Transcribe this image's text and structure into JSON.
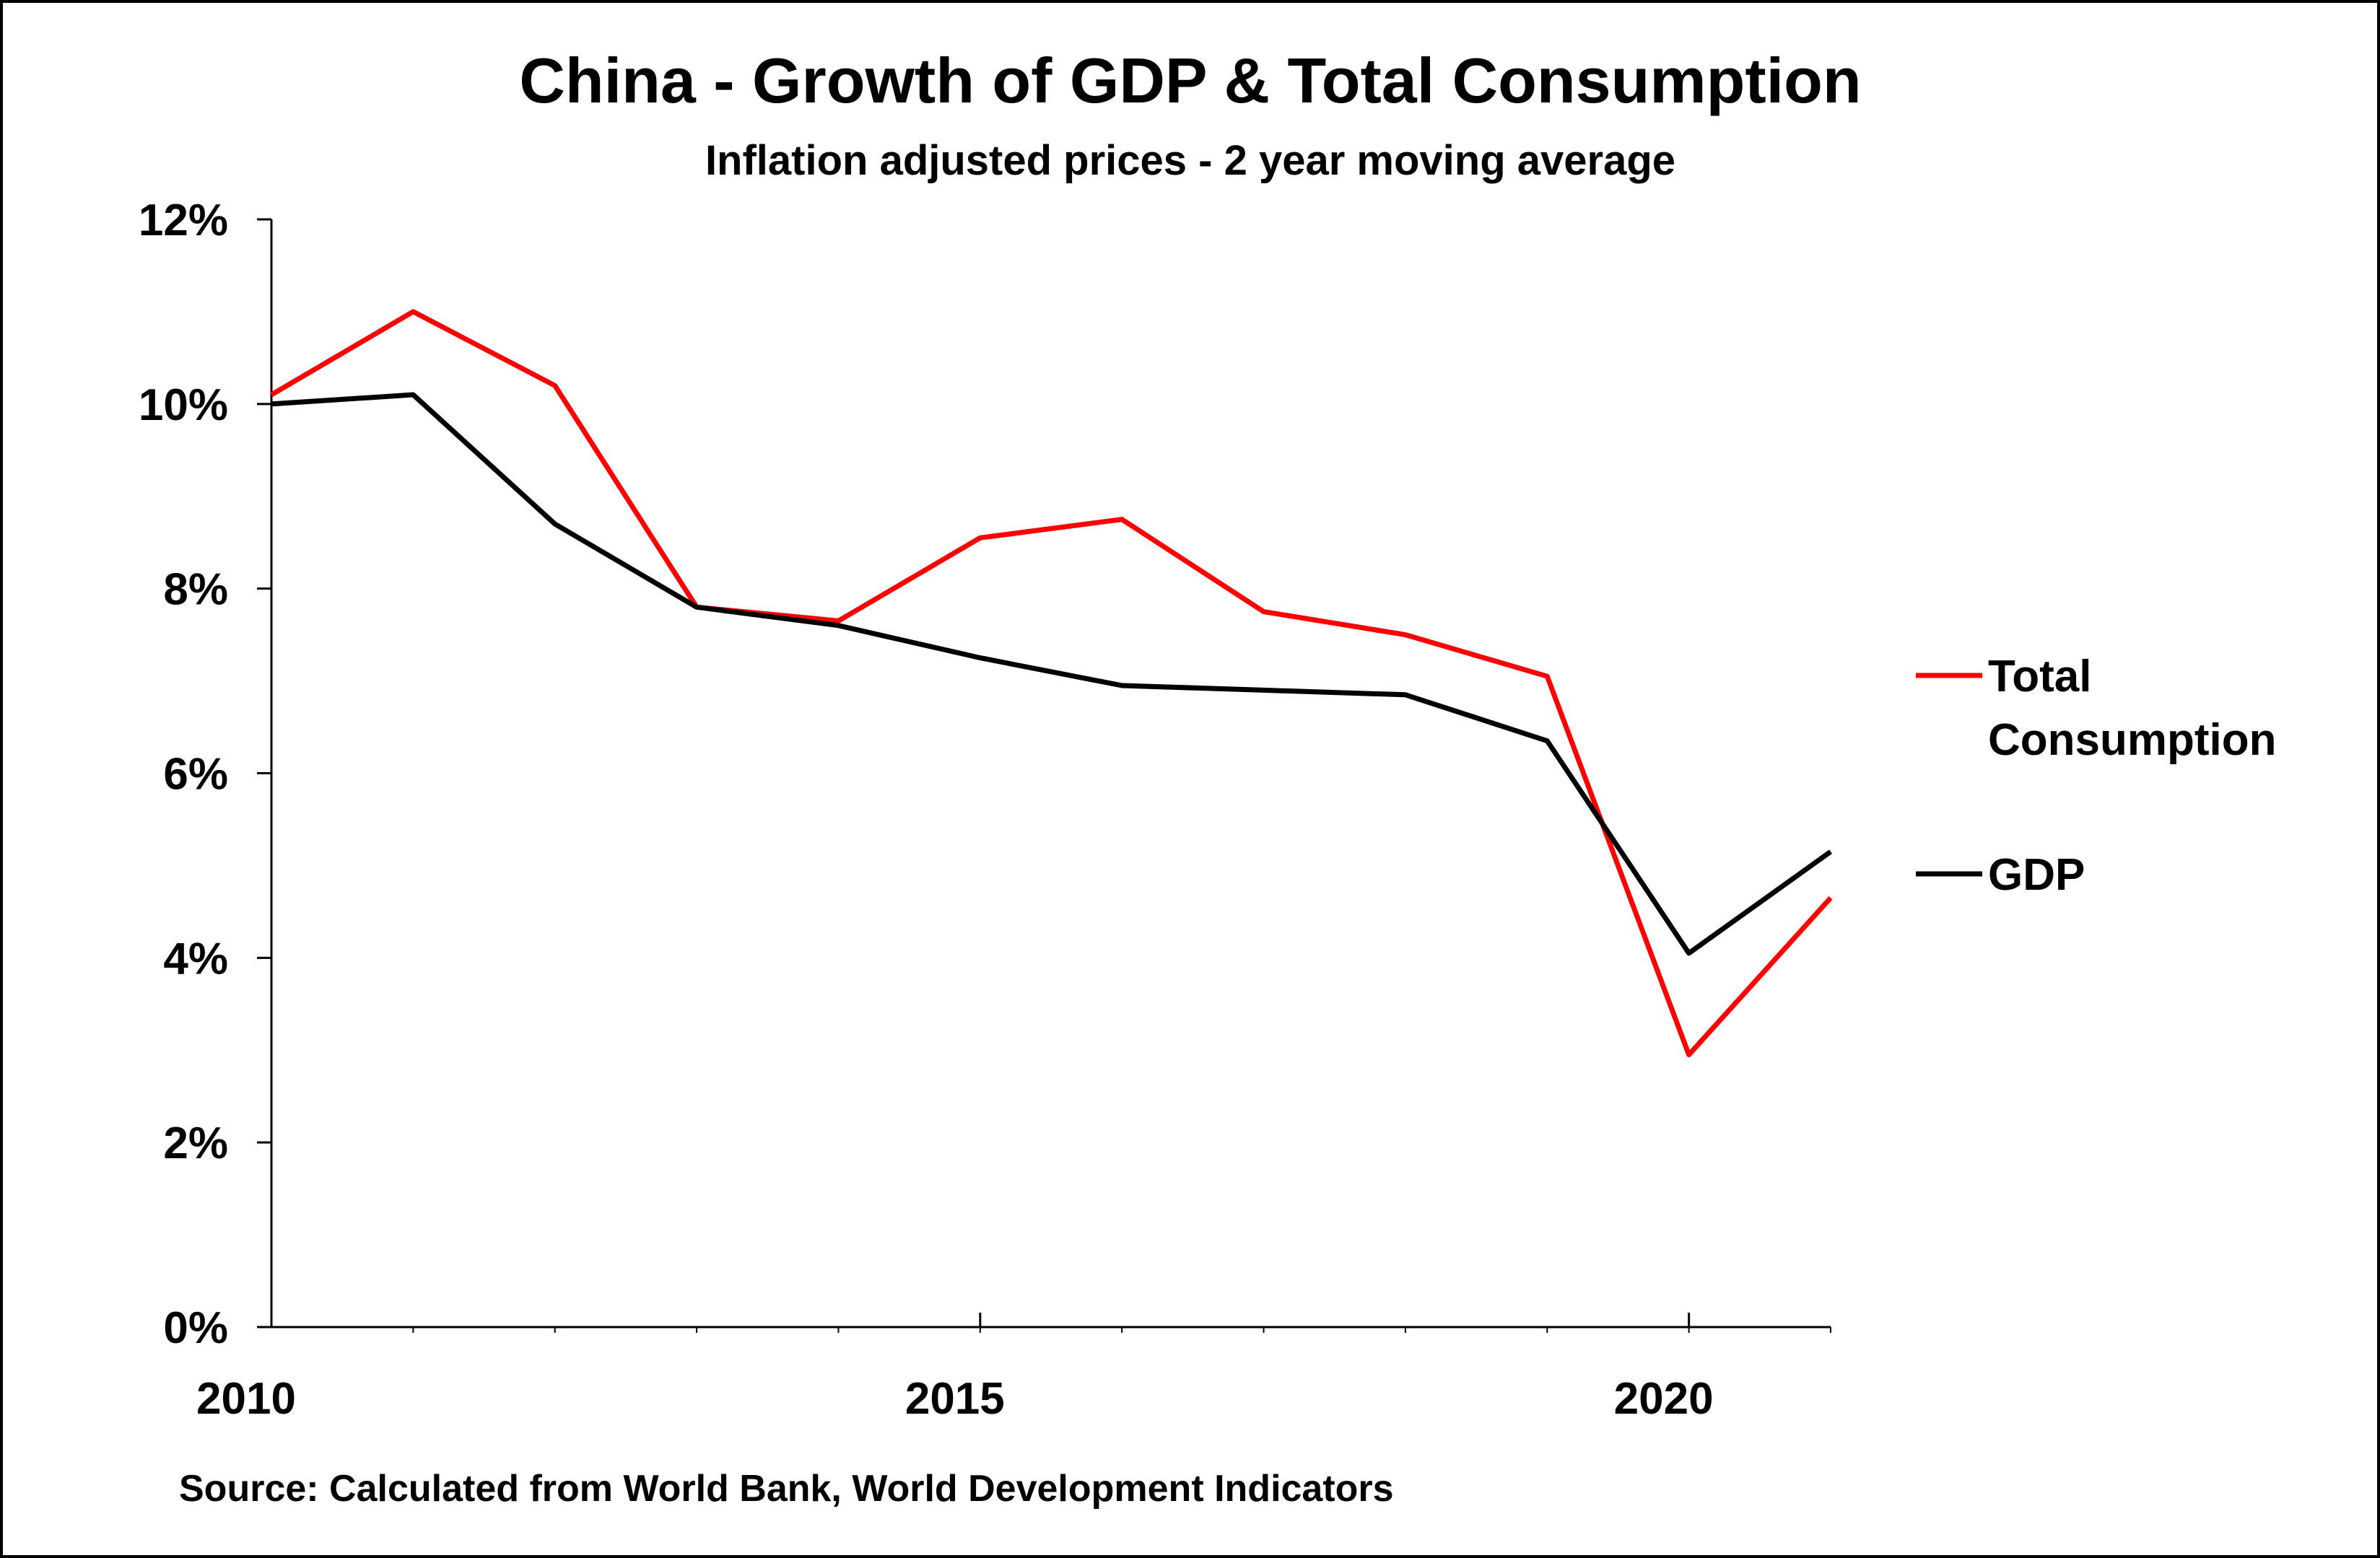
{
  "chart_data": {
    "type": "line",
    "title": "China - Growth of GDP & Total Consumption",
    "subtitle": "Inflation adjusted prices - 2 year moving average",
    "source": "Source: Calculated from World Bank, World Development Indicators",
    "xlabel": "",
    "ylabel": "",
    "x": [
      2010,
      2011,
      2012,
      2013,
      2014,
      2015,
      2016,
      2017,
      2018,
      2019,
      2020,
      2021
    ],
    "xlim": [
      2010,
      2021
    ],
    "xticks": [
      "2010",
      "2015",
      "2020"
    ],
    "xtick_values": [
      2010,
      2015,
      2020
    ],
    "ylim": [
      0,
      12
    ],
    "yticks": [
      "0%",
      "2%",
      "4%",
      "6%",
      "8%",
      "10%",
      "12%"
    ],
    "ytick_values": [
      0,
      2,
      4,
      6,
      8,
      10,
      12
    ],
    "grid": false,
    "legend_position": "right",
    "series": [
      {
        "name": "Total Consumption",
        "legend_lines": [
          "Total",
          "Consumption"
        ],
        "color": "#ff0000",
        "values": [
          10.1,
          11.0,
          10.2,
          7.8,
          7.65,
          8.55,
          8.75,
          7.75,
          7.5,
          7.05,
          2.95,
          4.65
        ]
      },
      {
        "name": "GDP",
        "legend_lines": [
          "GDP"
        ],
        "color": "#000000",
        "values": [
          10.0,
          10.1,
          8.7,
          7.8,
          7.6,
          7.25,
          6.95,
          6.9,
          6.85,
          6.35,
          4.05,
          5.15
        ]
      }
    ]
  }
}
